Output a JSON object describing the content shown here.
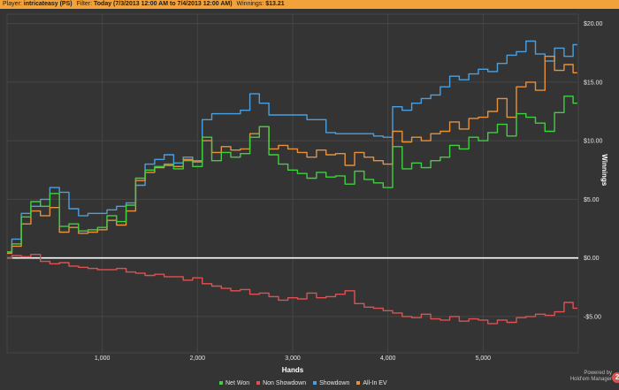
{
  "header": {
    "player_label": "Player:",
    "player_value": "intricateasy (PS)",
    "filter_label": "Filter:",
    "filter_value": "Today (7/3/2013 12:00 AM to 7/4/2013 12:00 AM)",
    "winnings_label": "Winnings:",
    "winnings_value": "$13.21"
  },
  "branding": {
    "powered_by": "Powered by",
    "product": "Hold'em Manager",
    "logo_glyph": "2"
  },
  "colors": {
    "background": "#343434",
    "grid": "#464646",
    "zero_line": "#ffffff",
    "header": "#f2a23a"
  },
  "chart_data": {
    "type": "line",
    "xlabel": "Hands",
    "ylabel": "Winnings",
    "xlim": [
      0,
      6000
    ],
    "ylim": [
      -8.1,
      20.8
    ],
    "x_ticks": [
      1000,
      2000,
      3000,
      4000,
      5000
    ],
    "x_tick_labels": [
      "1,000",
      "2,000",
      "3,000",
      "4,000",
      "5,000"
    ],
    "y_ticks": [
      20,
      15,
      10,
      5,
      0,
      -5
    ],
    "y_tick_labels": [
      "$20.00",
      "$15.00",
      "$10.00",
      "$5.00",
      "$0.00",
      "-$5.00"
    ],
    "grid": true,
    "legend_position": "bottom",
    "series": [
      {
        "name": "Net Won",
        "color": "#3fcf3f",
        "x": [
          0,
          100,
          200,
          300,
          400,
          500,
          600,
          700,
          800,
          900,
          1000,
          1100,
          1200,
          1300,
          1400,
          1500,
          1600,
          1700,
          1800,
          1900,
          2000,
          2100,
          2200,
          2300,
          2400,
          2500,
          2600,
          2700,
          2800,
          2900,
          3000,
          3100,
          3200,
          3300,
          3400,
          3500,
          3600,
          3700,
          3800,
          3900,
          4000,
          4100,
          4200,
          4300,
          4400,
          4500,
          4600,
          4700,
          4800,
          4900,
          5000,
          5100,
          5200,
          5300,
          5400,
          5500,
          5600,
          5700,
          5800,
          5900,
          5990
        ],
        "values": [
          0.5,
          1.2,
          3.5,
          4.8,
          4.4,
          5.5,
          2.7,
          2.9,
          2.3,
          2.4,
          2.6,
          3.6,
          3.1,
          4.5,
          6.8,
          7.5,
          7.8,
          8.0,
          7.6,
          8.3,
          7.8,
          10.3,
          8.3,
          9.0,
          8.6,
          8.9,
          10.3,
          11.2,
          8.8,
          8.0,
          7.5,
          7.2,
          6.8,
          7.3,
          6.9,
          7.0,
          6.3,
          7.4,
          6.7,
          6.4,
          6.0,
          9.5,
          7.6,
          8.1,
          7.7,
          8.3,
          8.6,
          9.6,
          9.3,
          10.3,
          10.0,
          10.7,
          11.4,
          10.4,
          12.3,
          12.0,
          11.5,
          10.8,
          12.4,
          13.8,
          13.2
        ]
      },
      {
        "name": "Non Showdown",
        "color": "#e05050",
        "x": [
          0,
          100,
          200,
          300,
          400,
          500,
          600,
          700,
          800,
          900,
          1000,
          1100,
          1200,
          1300,
          1400,
          1500,
          1600,
          1700,
          1800,
          1900,
          2000,
          2100,
          2200,
          2300,
          2400,
          2500,
          2600,
          2700,
          2800,
          2900,
          3000,
          3100,
          3200,
          3300,
          3400,
          3500,
          3600,
          3700,
          3800,
          3900,
          4000,
          4100,
          4200,
          4300,
          4400,
          4500,
          4600,
          4700,
          4800,
          4900,
          5000,
          5100,
          5200,
          5300,
          5400,
          5500,
          5600,
          5700,
          5800,
          5900,
          5990
        ],
        "values": [
          0.0,
          0.2,
          0.1,
          0.3,
          -0.3,
          -0.5,
          -0.4,
          -0.7,
          -0.8,
          -0.9,
          -1.0,
          -1.0,
          -0.9,
          -1.2,
          -1.3,
          -1.5,
          -1.4,
          -1.6,
          -1.6,
          -1.9,
          -1.7,
          -2.2,
          -2.4,
          -2.6,
          -2.8,
          -2.7,
          -3.1,
          -3.0,
          -3.3,
          -3.6,
          -3.4,
          -3.5,
          -3.0,
          -3.4,
          -3.3,
          -3.1,
          -2.8,
          -3.9,
          -4.2,
          -4.3,
          -4.5,
          -4.7,
          -5.0,
          -5.1,
          -4.8,
          -5.2,
          -5.3,
          -5.0,
          -5.4,
          -5.2,
          -5.3,
          -5.6,
          -5.3,
          -5.5,
          -5.1,
          -5.0,
          -4.8,
          -4.9,
          -4.6,
          -3.8,
          -4.3
        ]
      },
      {
        "name": "Showdown",
        "color": "#4a9fe0",
        "x": [
          0,
          100,
          200,
          300,
          400,
          500,
          600,
          700,
          800,
          900,
          1000,
          1100,
          1200,
          1300,
          1400,
          1500,
          1600,
          1700,
          1800,
          1900,
          2000,
          2100,
          2200,
          2300,
          2400,
          2500,
          2600,
          2700,
          2800,
          2900,
          3000,
          3100,
          3200,
          3300,
          3400,
          3500,
          3600,
          3700,
          3800,
          3900,
          4000,
          4100,
          4200,
          4300,
          4400,
          4500,
          4600,
          4700,
          4800,
          4900,
          5000,
          5100,
          5200,
          5300,
          5400,
          5500,
          5600,
          5700,
          5800,
          5900,
          5990
        ],
        "values": [
          0.5,
          1.6,
          3.8,
          4.4,
          5.0,
          6.0,
          5.6,
          4.2,
          3.6,
          3.8,
          3.8,
          4.1,
          4.4,
          4.7,
          6.2,
          8.0,
          8.4,
          8.8,
          8.1,
          8.6,
          8.3,
          11.8,
          12.3,
          12.3,
          12.3,
          12.6,
          14.0,
          13.2,
          12.2,
          12.2,
          12.2,
          12.2,
          11.8,
          11.8,
          10.7,
          10.6,
          10.6,
          10.6,
          10.6,
          10.4,
          10.3,
          12.9,
          12.6,
          13.2,
          13.6,
          13.9,
          14.6,
          15.5,
          15.2,
          15.7,
          16.1,
          15.9,
          16.6,
          17.3,
          17.6,
          18.5,
          17.4,
          16.8,
          17.9,
          17.2,
          18.2
        ]
      },
      {
        "name": "All-In EV",
        "color": "#e8903a",
        "x": [
          0,
          100,
          200,
          300,
          400,
          500,
          600,
          700,
          800,
          900,
          1000,
          1100,
          1200,
          1300,
          1400,
          1500,
          1600,
          1700,
          1800,
          1900,
          2000,
          2100,
          2200,
          2300,
          2400,
          2500,
          2600,
          2700,
          2800,
          2900,
          3000,
          3100,
          3200,
          3300,
          3400,
          3500,
          3600,
          3700,
          3800,
          3900,
          4000,
          4100,
          4200,
          4300,
          4400,
          4500,
          4600,
          4700,
          4800,
          4900,
          5000,
          5100,
          5200,
          5300,
          5400,
          5500,
          5600,
          5700,
          5800,
          5900,
          5990
        ],
        "values": [
          0.4,
          1.0,
          2.9,
          4.0,
          3.6,
          4.3,
          2.2,
          2.6,
          2.1,
          2.2,
          2.4,
          3.2,
          2.8,
          4.0,
          6.6,
          7.3,
          7.7,
          7.9,
          7.8,
          8.4,
          8.2,
          10.0,
          9.0,
          9.5,
          9.2,
          9.3,
          10.6,
          11.2,
          9.3,
          9.6,
          9.3,
          9.0,
          8.6,
          9.2,
          8.8,
          8.9,
          7.9,
          9.0,
          8.6,
          8.3,
          8.0,
          10.8,
          9.9,
          10.3,
          10.0,
          10.6,
          10.8,
          11.6,
          11.0,
          11.9,
          12.0,
          12.5,
          13.6,
          12.0,
          14.6,
          15.0,
          14.3,
          17.2,
          16.0,
          16.5,
          15.8
        ]
      }
    ]
  }
}
